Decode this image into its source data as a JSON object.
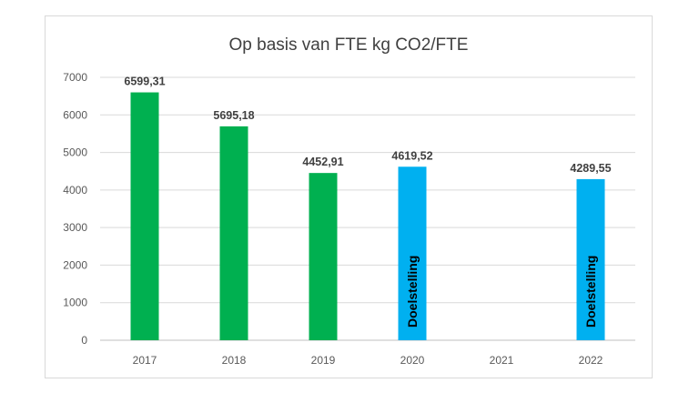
{
  "chart_data": {
    "type": "bar",
    "title": "Op basis van FTE kg CO2/FTE",
    "categories": [
      "2017",
      "2018",
      "2019",
      "2020",
      "2021",
      "2022"
    ],
    "values": [
      6599.31,
      5695.18,
      4452.91,
      4619.52,
      null,
      4289.55
    ],
    "value_labels": [
      "6599,31",
      "5695,18",
      "4452,91",
      "4619,52",
      "",
      "4289,55"
    ],
    "bar_kinds": [
      "actual",
      "actual",
      "actual",
      "target",
      "none",
      "target"
    ],
    "bar_texts": [
      "",
      "",
      "",
      "Doelstelling",
      "",
      "Doelstelling"
    ],
    "colors": {
      "actual": "#00b050",
      "target": "#00b0f0"
    },
    "ylim": [
      0,
      7000
    ],
    "yticks": [
      0,
      1000,
      2000,
      3000,
      4000,
      5000,
      6000,
      7000
    ],
    "grid": true,
    "xlabel": "",
    "ylabel": ""
  }
}
